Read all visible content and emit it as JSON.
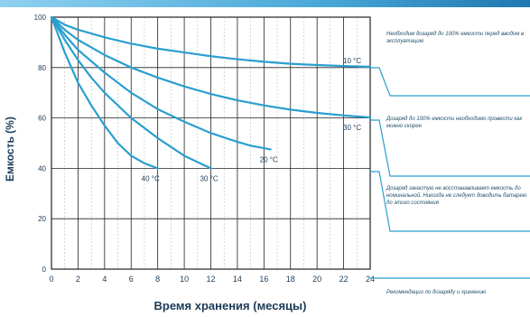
{
  "chart_data": {
    "type": "line",
    "xlabel": "Время хранения (месяцы)",
    "ylabel": "Емкость (%)",
    "xlim": [
      0,
      24
    ],
    "ylim": [
      0,
      100
    ],
    "x_ticks": [
      "0",
      "2",
      "4",
      "6",
      "8",
      "10",
      "12",
      "14",
      "16",
      "18",
      "20",
      "22",
      "24"
    ],
    "y_ticks": [
      "0",
      "20",
      "40",
      "60",
      "80",
      "100"
    ],
    "grid": true,
    "line_color": "#2a9fcf",
    "series": [
      {
        "name": "10 °C",
        "x": [
          0,
          1,
          2,
          4,
          6,
          8,
          10,
          12,
          14,
          16,
          18,
          20,
          22,
          24
        ],
        "y": [
          100,
          97,
          95,
          92,
          89.5,
          87.5,
          86,
          84.5,
          83.3,
          82.3,
          81.5,
          81,
          80.6,
          80.3
        ]
      },
      {
        "name": "30 °C",
        "x": [
          0,
          1,
          2,
          4,
          6,
          8,
          10,
          12,
          14,
          16,
          18,
          20,
          22,
          24
        ],
        "y": [
          100,
          95,
          91,
          85,
          80,
          76,
          72.5,
          69.5,
          67,
          65,
          63.3,
          62,
          61,
          60.2
        ]
      },
      {
        "name": "20 °C",
        "x": [
          0,
          1,
          2,
          4,
          6,
          8,
          10,
          12,
          14,
          15,
          16.5
        ],
        "y": [
          100,
          93,
          87,
          78,
          70,
          63.5,
          58.5,
          54,
          50.5,
          49,
          47.5
        ]
      },
      {
        "name": "30 °C",
        "x": [
          0,
          1,
          2,
          3,
          4,
          6,
          8,
          10,
          12
        ],
        "y": [
          100,
          91,
          83,
          76,
          70,
          60,
          52,
          45,
          40
        ]
      },
      {
        "name": "40 °C",
        "x": [
          0,
          0.5,
          1,
          2,
          3,
          4,
          5,
          6,
          7,
          8
        ],
        "y": [
          100,
          93,
          86,
          74,
          65,
          57,
          50,
          45,
          42,
          40
        ]
      }
    ]
  },
  "notes": [
    "Необходим дозаряд до 100% емкости перед вводом в эксплуатацию",
    "Дозаряд до 100% емкости необходимо провести как можно скорее",
    "Дозаряд зачастую не восстанавливает емкость до номинальной. Никогда не следует доводить батарею до этого состояния",
    "Рекомендации по дозаряду и хранению"
  ]
}
